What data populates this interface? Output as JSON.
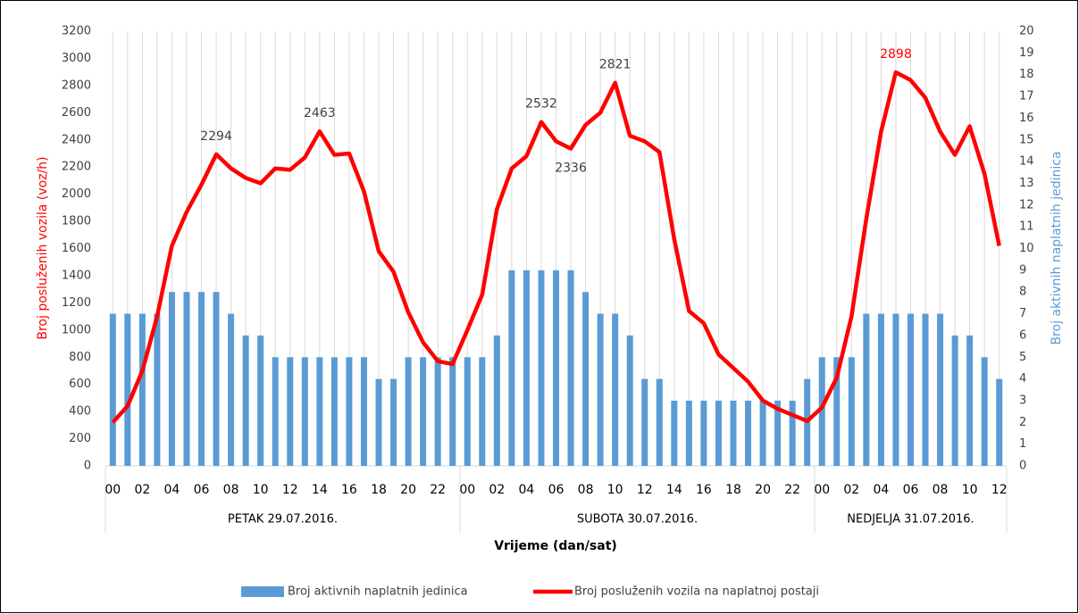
{
  "chart_data": {
    "type": "bar-line",
    "x_label": "Vrijeme (dan/sat)",
    "y_label": "Broj posluženih vozila  (voz/h)",
    "y2_label": "Broj aktivnih naplatnih jedinica",
    "groups": [
      {
        "label": "PETAK 29.07.2016.",
        "categories": [
          "00",
          null,
          "02",
          null,
          "04",
          null,
          "06",
          null,
          "08",
          null,
          "10",
          null,
          "12",
          null,
          "14",
          null,
          "16",
          null,
          "18",
          null,
          "20",
          null,
          "22",
          null
        ]
      },
      {
        "label": "SUBOTA 30.07.2016.",
        "categories": [
          "00",
          null,
          "02",
          null,
          "04",
          null,
          "06",
          null,
          "08",
          null,
          "10",
          null,
          "12",
          null,
          "14",
          null,
          "16",
          null,
          "18",
          null,
          "20",
          null,
          "22",
          null
        ]
      },
      {
        "label": "NEDJELJA 31.07.2016.",
        "categories": [
          "00",
          null,
          "02",
          null,
          "04",
          null,
          "06",
          null,
          "08",
          null,
          "10",
          null,
          "12"
        ]
      }
    ],
    "series": [
      {
        "name": "Broj aktivnih naplatnih jedinica",
        "type": "bar",
        "axis": "y2",
        "color": "#5b9bd5",
        "values": [
          7,
          7,
          7,
          7,
          8,
          8,
          8,
          8,
          7,
          6,
          6,
          5,
          5,
          5,
          5,
          5,
          5,
          5,
          4,
          4,
          5,
          5,
          5,
          5,
          5,
          5,
          6,
          9,
          9,
          9,
          9,
          9,
          8,
          7,
          7,
          6,
          4,
          4,
          3,
          3,
          3,
          3,
          3,
          3,
          3,
          3,
          3,
          4,
          5,
          5,
          5,
          7,
          7,
          7,
          7,
          7,
          7,
          6,
          6,
          5,
          4
        ]
      },
      {
        "name": "Broj posluženih vozila na naplatnoj postaji",
        "type": "line",
        "axis": "y",
        "color": "#ff0000",
        "values": [
          320,
          440,
          700,
          1100,
          1620,
          1870,
          2070,
          2294,
          2190,
          2120,
          2080,
          2190,
          2180,
          2270,
          2463,
          2290,
          2300,
          2020,
          1580,
          1430,
          1130,
          910,
          770,
          750,
          1000,
          1260,
          1890,
          2190,
          2280,
          2532,
          2390,
          2336,
          2510,
          2600,
          2821,
          2430,
          2390,
          2310,
          1670,
          1140,
          1050,
          820,
          720,
          620,
          480,
          420,
          375,
          330,
          430,
          650,
          1100,
          1820,
          2460,
          2898,
          2840,
          2710,
          2460,
          2290,
          2500,
          2150,
          1620
        ],
        "value_labels": [
          null,
          null,
          null,
          null,
          null,
          null,
          null,
          "2294",
          null,
          null,
          null,
          null,
          null,
          null,
          "2463",
          null,
          null,
          null,
          null,
          null,
          null,
          null,
          null,
          null,
          null,
          null,
          null,
          null,
          null,
          "2532",
          null,
          "2336",
          null,
          null,
          "2821",
          null,
          null,
          null,
          null,
          null,
          null,
          null,
          null,
          null,
          null,
          null,
          null,
          null,
          null,
          null,
          null,
          null,
          null,
          "2898",
          null,
          null,
          null,
          null,
          null,
          null,
          null
        ],
        "max_label_color": "#ff0000"
      }
    ],
    "ylim": [
      0,
      3200
    ],
    "yticks": [
      0,
      200,
      400,
      600,
      800,
      1000,
      1200,
      1400,
      1600,
      1800,
      2000,
      2200,
      2400,
      2600,
      2800,
      3000,
      3200
    ],
    "y2lim": [
      0,
      20
    ],
    "y2ticks": [
      0,
      1,
      2,
      3,
      4,
      5,
      6,
      7,
      8,
      9,
      10,
      11,
      12,
      13,
      14,
      15,
      16,
      17,
      18,
      19,
      20
    ],
    "grid": true
  }
}
